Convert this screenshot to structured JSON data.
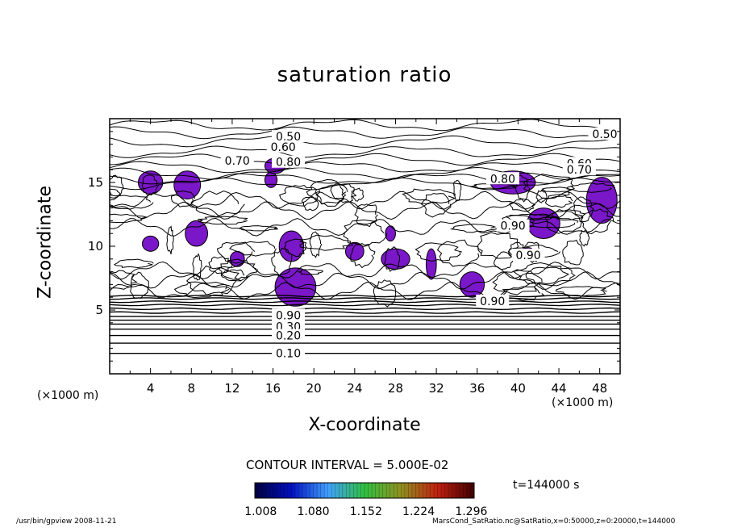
{
  "chart_data": {
    "type": "heatmap",
    "title": "saturation ratio",
    "xlabel": "X-coordinate",
    "ylabel": "Z-coordinate",
    "x_unit_label": "(×1000 m)",
    "y_unit_label": "(×1000 m)",
    "xlim": [
      0,
      50
    ],
    "ylim": [
      0,
      20
    ],
    "x_ticks": [
      4,
      8,
      12,
      16,
      20,
      24,
      28,
      32,
      36,
      40,
      44,
      48
    ],
    "y_ticks": [
      5,
      10,
      15
    ],
    "contour_interval_text": "CONTOUR INTERVAL = 5.000E-02",
    "contour_labels": [
      {
        "text": "0.50",
        "x": 17.5,
        "z": 18.6
      },
      {
        "text": "0.60",
        "x": 17.0,
        "z": 17.8
      },
      {
        "text": "0.70",
        "x": 12.5,
        "z": 16.7
      },
      {
        "text": "0.80",
        "x": 17.5,
        "z": 16.6
      },
      {
        "text": "0.50",
        "x": 48.5,
        "z": 18.8
      },
      {
        "text": "0.60",
        "x": 46.0,
        "z": 16.5
      },
      {
        "text": "0.70",
        "x": 46.0,
        "z": 16.0
      },
      {
        "text": "0.80",
        "x": 38.5,
        "z": 15.3
      },
      {
        "text": "0.90",
        "x": 39.5,
        "z": 11.6
      },
      {
        "text": "0.90",
        "x": 41.0,
        "z": 9.3
      },
      {
        "text": "0.90",
        "x": 37.5,
        "z": 5.7
      },
      {
        "text": "0.90",
        "x": 17.5,
        "z": 4.6
      },
      {
        "text": "0.30",
        "x": 17.5,
        "z": 3.7
      },
      {
        "text": "0.20",
        "x": 17.5,
        "z": 3.0
      },
      {
        "text": "0.10",
        "x": 17.5,
        "z": 1.6
      }
    ],
    "horizontal_contours_z": [
      1.6,
      2.4,
      3.0,
      3.5,
      3.9,
      4.2,
      4.5,
      4.8,
      5.1,
      5.4,
      5.65,
      5.9,
      6.1
    ],
    "supersaturated_fill_color": "#7a17c8",
    "colorbar": {
      "tick_labels": [
        "1.008",
        "1.080",
        "1.152",
        "1.224",
        "1.296"
      ],
      "range": [
        1.0,
        1.3
      ],
      "colors": [
        "#000040",
        "#0010c0",
        "#40a0ff",
        "#30c040",
        "#909020",
        "#c02010",
        "#400000"
      ]
    },
    "time_label": "t=144000 s"
  },
  "footer": {
    "left": "/usr/bin/gpview  2008-11-21",
    "right": "MarsCond_SatRatio.nc@SatRatio,x=0:50000,z=0:20000,t=144000"
  }
}
